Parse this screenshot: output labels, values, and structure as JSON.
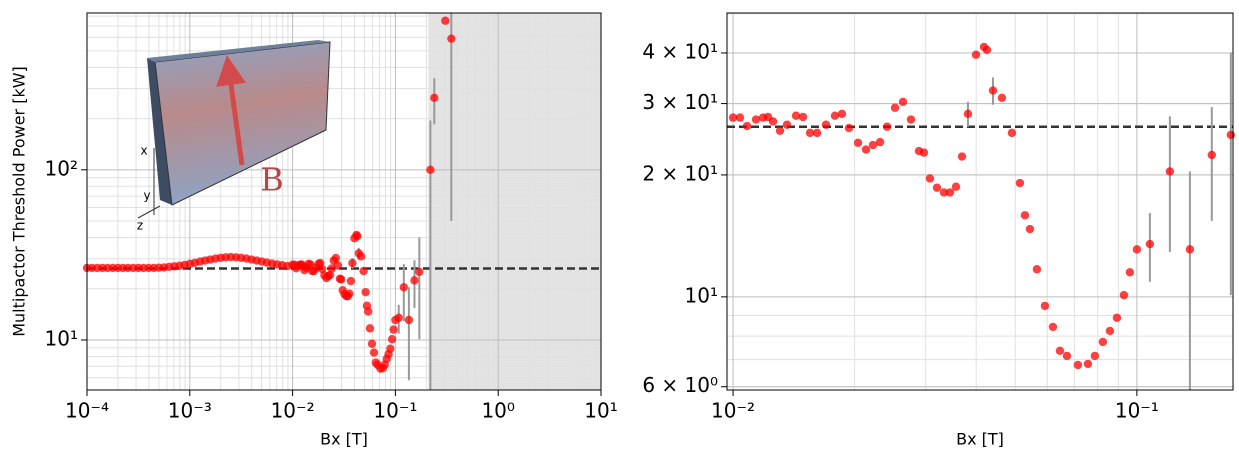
{
  "chart_data": [
    {
      "type": "scatter",
      "x_label": "Bx [T]",
      "y_label": "Multipactor Threshold Power [kW]",
      "log_x": true,
      "log_y": true,
      "grid": true,
      "minor_grid": true,
      "xlim": [
        0.0001,
        10
      ],
      "ylim": [
        5.08,
        835
      ],
      "xticks": [
        {
          "value": 0.0001,
          "label": "10⁻⁴"
        },
        {
          "value": 0.001,
          "label": "10⁻³"
        },
        {
          "value": 0.01,
          "label": "10⁻²"
        },
        {
          "value": 0.1,
          "label": "10⁻¹"
        },
        {
          "value": 1,
          "label": "10⁰"
        },
        {
          "value": 10,
          "label": "10¹"
        }
      ],
      "yticks": [
        {
          "value": 10,
          "label": "10¹"
        },
        {
          "value": 100,
          "label": "10²"
        }
      ],
      "reference_line": 26.3,
      "shaded_xrange": [
        0.209,
        10
      ],
      "inset": {
        "axis_labels": [
          "x",
          "y",
          "z"
        ],
        "field_label": "B"
      },
      "series": [
        {
          "color": "#ff0000",
          "x": [
            0.0001,
            0.000112,
            0.000126,
            0.000141,
            0.000158,
            0.000178,
            0.0002,
            0.000224,
            0.000251,
            0.000282,
            0.000316,
            0.000355,
            0.000398,
            0.000447,
            0.000501,
            0.000562,
            0.000631,
            0.000708,
            0.000794,
            0.000891,
            0.001,
            0.00112,
            0.00126,
            0.00141,
            0.00158,
            0.00178,
            0.002,
            0.00224,
            0.00251,
            0.00282,
            0.00316,
            0.00355,
            0.00398,
            0.00447,
            0.00501,
            0.00562,
            0.00631,
            0.00708,
            0.00794,
            0.00891,
            0.01,
            0.0104,
            0.01083,
            0.0114,
            0.01187,
            0.01221,
            0.01256,
            0.01307,
            0.0136,
            0.01432,
            0.0149,
            0.01551,
            0.01614,
            0.01699,
            0.01788,
            0.01861,
            0.01937,
            0.02039,
            0.02134,
            0.02221,
            0.02312,
            0.02406,
            0.02518,
            0.02635,
            0.02758,
            0.02886,
            0.0297,
            0.03073,
            0.03199,
            0.03329,
            0.03445,
            0.03565,
            0.03689,
            0.03817,
            0.03996,
            0.04181,
            0.04254,
            0.04402,
            0.04632,
            0.04904,
            0.05133,
            0.05282,
            0.05435,
            0.05655,
            0.0592,
            0.06196,
            0.06449,
            0.06711,
            0.07145,
            0.07564,
            0.0787,
            0.08237,
            0.08577,
            0.08925,
            0.09287,
            0.0961,
            0.1,
            0.1077,
            0.1207,
            0.1353,
            0.1533,
            0.1709,
            0.219,
            0.239,
            0.306,
            0.35
          ],
          "values": [
            26.5,
            26.5,
            26.5,
            26.5,
            26.5,
            26.5,
            26.5,
            26.5,
            26.5,
            26.5,
            26.5,
            26.5,
            26.5,
            26.5,
            26.6,
            26.7,
            26.9,
            27.1,
            27.3,
            27.6,
            28,
            28.4,
            28.9,
            29.3,
            29.7,
            30.1,
            30.4,
            30.6,
            30.7,
            30.6,
            30.4,
            30.1,
            29.7,
            29.3,
            28.9,
            28.5,
            28.1,
            27.8,
            27.5,
            27.2,
            27.7,
            27.7,
            26.4,
            27.4,
            27.7,
            27.8,
            27.1,
            25.7,
            26.6,
            28.0,
            27.8,
            25.4,
            25.4,
            26.6,
            28.0,
            28.3,
            26.1,
            24.0,
            23.1,
            23.7,
            24.1,
            26.3,
            29.3,
            30.3,
            27.4,
            22.9,
            22.7,
            19.6,
            18.6,
            18.1,
            18.1,
            18.7,
            22.2,
            28.3,
            39.6,
            41.4,
            40.7,
            32.3,
            31.0,
            25.4,
            19.1,
            15.9,
            14.7,
            11.7,
            9.5,
            8.43,
            7.36,
            7.15,
            6.79,
            6.83,
            7.15,
            7.74,
            8.24,
            8.88,
            10.1,
            11.5,
            13.1,
            13.5,
            20.4,
            13.1,
            22.4,
            25.1,
            100,
            265,
            752,
            590
          ],
          "errors": [
            null,
            null,
            null,
            null,
            null,
            null,
            null,
            null,
            null,
            null,
            null,
            null,
            null,
            null,
            null,
            null,
            null,
            null,
            null,
            null,
            null,
            null,
            null,
            null,
            null,
            null,
            null,
            null,
            null,
            null,
            null,
            null,
            null,
            null,
            null,
            null,
            null,
            null,
            null,
            null,
            null,
            null,
            null,
            null,
            null,
            null,
            null,
            null,
            null,
            null,
            null,
            null,
            null,
            null,
            null,
            null,
            null,
            null,
            null,
            null,
            null,
            null,
            null,
            null,
            null,
            null,
            null,
            null,
            null,
            null,
            null,
            null,
            null,
            2,
            null,
            null,
            null,
            2.5,
            null,
            null,
            null,
            null,
            null,
            null,
            null,
            null,
            null,
            null,
            null,
            null,
            null,
            null,
            null,
            null,
            null,
            null,
            null,
            2.6,
            7.5,
            7.3,
            7,
            15,
            95,
            80,
            null,
            540
          ]
        }
      ]
    },
    {
      "type": "scatter",
      "x_label": "Bx [T]",
      "log_x": true,
      "log_y": true,
      "grid": true,
      "minor_grid": true,
      "xlim": [
        0.00966,
        0.173
      ],
      "ylim": [
        5.89,
        50.2
      ],
      "xticks": [
        {
          "value": 0.01,
          "label": "10⁻²"
        },
        {
          "value": 0.1,
          "label": "10⁻¹"
        }
      ],
      "yticks": [
        {
          "value": 6,
          "label": "6 × 10⁰"
        },
        {
          "value": 10,
          "label": "10¹"
        },
        {
          "value": 20,
          "label": "2 × 10¹"
        },
        {
          "value": 30,
          "label": "3 × 10¹"
        },
        {
          "value": 40,
          "label": "4 × 10¹"
        }
      ],
      "reference_line": 26.3,
      "series": [
        {
          "color": "#ff0000",
          "x": [
            0.01,
            0.0104,
            0.01083,
            0.0114,
            0.01187,
            0.01221,
            0.01256,
            0.01307,
            0.0136,
            0.01432,
            0.0149,
            0.01551,
            0.01614,
            0.01699,
            0.01788,
            0.01861,
            0.01937,
            0.02039,
            0.02134,
            0.02221,
            0.02312,
            0.02406,
            0.02518,
            0.02635,
            0.02758,
            0.02886,
            0.0297,
            0.03073,
            0.03199,
            0.03329,
            0.03445,
            0.03565,
            0.03689,
            0.03817,
            0.03996,
            0.04181,
            0.04254,
            0.04402,
            0.04632,
            0.04904,
            0.05133,
            0.05282,
            0.05435,
            0.05655,
            0.0592,
            0.06196,
            0.06449,
            0.06711,
            0.07145,
            0.07564,
            0.0787,
            0.08237,
            0.08577,
            0.08925,
            0.09287,
            0.0961,
            0.1,
            0.1077,
            0.1207,
            0.1353,
            0.1533,
            0.1709
          ],
          "values": [
            27.7,
            27.7,
            26.4,
            27.4,
            27.7,
            27.8,
            27.1,
            25.7,
            26.6,
            28.0,
            27.8,
            25.4,
            25.4,
            26.6,
            28.0,
            28.3,
            26.1,
            24.0,
            23.1,
            23.7,
            24.1,
            26.3,
            29.3,
            30.3,
            27.4,
            22.9,
            22.7,
            19.6,
            18.6,
            18.1,
            18.1,
            18.7,
            22.2,
            28.3,
            39.6,
            41.4,
            40.7,
            32.3,
            31.0,
            25.4,
            19.1,
            15.9,
            14.7,
            11.7,
            9.5,
            8.43,
            7.36,
            7.15,
            6.79,
            6.83,
            7.15,
            7.74,
            8.24,
            8.88,
            10.1,
            11.5,
            13.1,
            13.5,
            20.4,
            13.1,
            22.4,
            25.1
          ],
          "errors": [
            null,
            null,
            null,
            null,
            null,
            null,
            null,
            null,
            null,
            null,
            null,
            null,
            null,
            null,
            null,
            null,
            null,
            null,
            null,
            null,
            null,
            null,
            null,
            null,
            null,
            null,
            null,
            null,
            null,
            null,
            null,
            null,
            null,
            2,
            null,
            null,
            null,
            2.5,
            null,
            null,
            null,
            null,
            null,
            null,
            null,
            null,
            null,
            null,
            null,
            null,
            null,
            null,
            null,
            null,
            null,
            null,
            null,
            2.6,
            7.5,
            7.3,
            7,
            15
          ]
        }
      ]
    }
  ]
}
